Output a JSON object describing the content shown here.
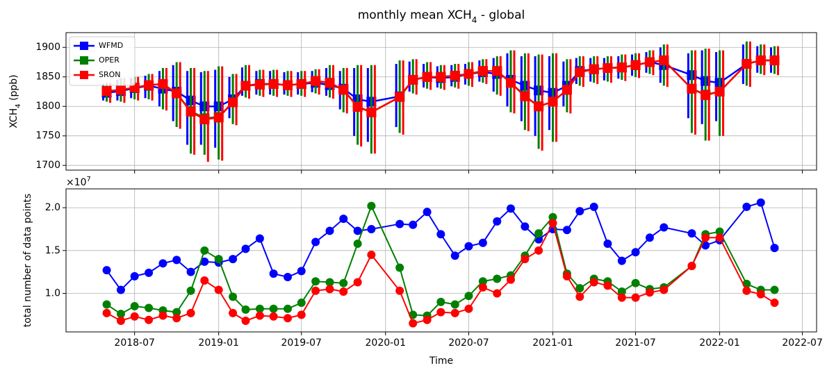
{
  "chart_data": [
    {
      "type": "errorbar",
      "title": [
        "monthly mean XCH",
        "4",
        " - global"
      ],
      "ylabel": [
        "XCH",
        "4",
        " (ppb)"
      ],
      "x": [
        "2018-05",
        "2018-06",
        "2018-07",
        "2018-08",
        "2018-09",
        "2018-10",
        "2018-11",
        "2018-12",
        "2019-01",
        "2019-02",
        "2019-03",
        "2019-04",
        "2019-05",
        "2019-06",
        "2019-07",
        "2019-08",
        "2019-09",
        "2019-10",
        "2019-11",
        "2019-12",
        "2020-02",
        "2020-03",
        "2020-04",
        "2020-05",
        "2020-06",
        "2020-07",
        "2020-08",
        "2020-09",
        "2020-10",
        "2020-11",
        "2020-12",
        "2021-01",
        "2021-02",
        "2021-03",
        "2021-04",
        "2021-05",
        "2021-06",
        "2021-07",
        "2021-08",
        "2021-09",
        "2021-11",
        "2021-12",
        "2022-01",
        "2022-03",
        "2022-04",
        "2022-05"
      ],
      "xlim": [
        "2018-02",
        "2022-08"
      ],
      "ylim": [
        1692,
        1925
      ],
      "yticks": [
        1700,
        1750,
        1800,
        1850,
        1900
      ],
      "grid": true,
      "legend": "upper left",
      "series": [
        {
          "name": "WFMD",
          "color": "#0000ff",
          "values": [
            1823,
            1826,
            1831,
            1835,
            1830,
            1825,
            1810,
            1800,
            1800,
            1812,
            1835,
            1838,
            1838,
            1836,
            1838,
            1840,
            1836,
            1830,
            1812,
            1808,
            1817,
            1845,
            1850,
            1848,
            1850,
            1855,
            1858,
            1855,
            1845,
            1835,
            1827,
            1823,
            1835,
            1860,
            1863,
            1865,
            1866,
            1870,
            1875,
            1870,
            1853,
            1843,
            1840,
            1872,
            1878,
            1878
          ],
          "low": [
            1810,
            1810,
            1814,
            1814,
            1800,
            1775,
            1735,
            1735,
            1730,
            1780,
            1818,
            1820,
            1820,
            1820,
            1820,
            1824,
            1818,
            1795,
            1750,
            1740,
            1765,
            1825,
            1832,
            1832,
            1834,
            1837,
            1842,
            1825,
            1800,
            1775,
            1750,
            1760,
            1800,
            1838,
            1842,
            1844,
            1847,
            1852,
            1857,
            1840,
            1780,
            1770,
            1775,
            1838,
            1857,
            1857
          ],
          "high": [
            1838,
            1845,
            1848,
            1852,
            1860,
            1870,
            1860,
            1858,
            1862,
            1850,
            1866,
            1860,
            1860,
            1858,
            1858,
            1860,
            1865,
            1860,
            1865,
            1865,
            1872,
            1876,
            1872,
            1868,
            1870,
            1872,
            1878,
            1882,
            1890,
            1885,
            1885,
            1885,
            1876,
            1882,
            1882,
            1882,
            1885,
            1888,
            1892,
            1900,
            1890,
            1895,
            1892,
            1905,
            1902,
            1900
          ]
        },
        {
          "name": "OPER",
          "color": "#008000",
          "values": [
            1826,
            1828,
            1832,
            1836,
            1838,
            1822,
            1792,
            1780,
            1782,
            1807,
            1835,
            1837,
            1838,
            1836,
            1838,
            1843,
            1840,
            1828,
            1800,
            1790,
            1816,
            1845,
            1850,
            1850,
            1852,
            1855,
            1860,
            1860,
            1840,
            1818,
            1800,
            1808,
            1828,
            1858,
            1863,
            1865,
            1866,
            1870,
            1875,
            1878,
            1830,
            1820,
            1825,
            1872,
            1878,
            1878
          ],
          "low": [
            1808,
            1808,
            1812,
            1812,
            1795,
            1765,
            1720,
            1718,
            1710,
            1770,
            1815,
            1818,
            1818,
            1818,
            1818,
            1822,
            1815,
            1790,
            1735,
            1720,
            1755,
            1822,
            1830,
            1830,
            1832,
            1835,
            1840,
            1820,
            1790,
            1760,
            1728,
            1740,
            1790,
            1835,
            1840,
            1842,
            1845,
            1850,
            1855,
            1835,
            1755,
            1742,
            1750,
            1835,
            1855,
            1855
          ],
          "high": [
            1840,
            1848,
            1850,
            1855,
            1865,
            1875,
            1865,
            1860,
            1868,
            1855,
            1870,
            1862,
            1862,
            1860,
            1860,
            1863,
            1870,
            1865,
            1870,
            1870,
            1878,
            1880,
            1875,
            1870,
            1872,
            1875,
            1880,
            1885,
            1895,
            1890,
            1888,
            1890,
            1880,
            1885,
            1885,
            1885,
            1888,
            1890,
            1895,
            1905,
            1895,
            1898,
            1895,
            1910,
            1905,
            1902
          ]
        },
        {
          "name": "SRON",
          "color": "#ff0000",
          "values": [
            1826,
            1828,
            1832,
            1836,
            1838,
            1822,
            1791,
            1778,
            1781,
            1807,
            1835,
            1837,
            1838,
            1836,
            1838,
            1843,
            1840,
            1828,
            1799,
            1790,
            1816,
            1845,
            1850,
            1850,
            1852,
            1855,
            1860,
            1860,
            1840,
            1817,
            1800,
            1808,
            1828,
            1858,
            1863,
            1865,
            1866,
            1870,
            1875,
            1878,
            1830,
            1819,
            1825,
            1872,
            1878,
            1878
          ],
          "low": [
            1806,
            1806,
            1810,
            1810,
            1793,
            1762,
            1718,
            1706,
            1708,
            1768,
            1813,
            1816,
            1816,
            1816,
            1816,
            1820,
            1813,
            1788,
            1732,
            1720,
            1752,
            1820,
            1828,
            1828,
            1830,
            1833,
            1838,
            1818,
            1788,
            1758,
            1725,
            1740,
            1788,
            1833,
            1838,
            1840,
            1843,
            1848,
            1853,
            1833,
            1752,
            1742,
            1750,
            1833,
            1853,
            1853
          ],
          "high": [
            1840,
            1848,
            1850,
            1855,
            1865,
            1875,
            1865,
            1860,
            1868,
            1855,
            1870,
            1862,
            1862,
            1860,
            1860,
            1863,
            1870,
            1865,
            1870,
            1870,
            1878,
            1880,
            1875,
            1870,
            1872,
            1875,
            1880,
            1885,
            1895,
            1890,
            1888,
            1890,
            1880,
            1885,
            1885,
            1885,
            1888,
            1890,
            1895,
            1905,
            1895,
            1898,
            1895,
            1910,
            1905,
            1902
          ]
        }
      ]
    },
    {
      "type": "line",
      "ylabel": "total number of data points",
      "y_offset": [
        "×10",
        "7"
      ],
      "xlabel": "Time",
      "x": [
        "2018-05",
        "2018-06",
        "2018-07",
        "2018-08",
        "2018-09",
        "2018-10",
        "2018-11",
        "2018-12",
        "2019-01",
        "2019-02",
        "2019-03",
        "2019-04",
        "2019-05",
        "2019-06",
        "2019-07",
        "2019-08",
        "2019-09",
        "2019-10",
        "2019-11",
        "2019-12",
        "2020-02",
        "2020-03",
        "2020-04",
        "2020-05",
        "2020-06",
        "2020-07",
        "2020-08",
        "2020-09",
        "2020-10",
        "2020-11",
        "2020-12",
        "2021-01",
        "2021-02",
        "2021-03",
        "2021-04",
        "2021-05",
        "2021-06",
        "2021-07",
        "2021-08",
        "2021-09",
        "2021-11",
        "2021-12",
        "2022-01",
        "2022-03",
        "2022-04",
        "2022-05"
      ],
      "xlim": [
        "2018-02",
        "2022-08"
      ],
      "xticks": [
        "2018-07",
        "2019-01",
        "2019-07",
        "2020-01",
        "2020-07",
        "2021-01",
        "2021-07",
        "2022-01",
        "2022-07"
      ],
      "ylim": [
        0.55,
        2.22
      ],
      "yticks": [
        {
          "value": 1,
          "label": "1.0"
        },
        1.5,
        {
          "value": 2,
          "label": "2.0"
        }
      ],
      "grid": true,
      "series": [
        {
          "name": "WFMD",
          "color": "#0000ff",
          "values": [
            1.27,
            1.04,
            1.2,
            1.24,
            1.35,
            1.39,
            1.25,
            1.37,
            1.36,
            1.4,
            1.52,
            1.64,
            1.23,
            1.19,
            1.26,
            1.6,
            1.73,
            1.87,
            1.73,
            1.75,
            1.81,
            1.8,
            1.95,
            1.69,
            1.44,
            1.55,
            1.59,
            1.84,
            1.99,
            1.78,
            1.63,
            1.75,
            1.74,
            1.96,
            2.01,
            1.58,
            1.38,
            1.48,
            1.65,
            1.77,
            1.7,
            1.56,
            1.62,
            2.01,
            2.06,
            1.53
          ]
        },
        {
          "name": "OPER",
          "color": "#008000",
          "values": [
            0.87,
            0.76,
            0.85,
            0.83,
            0.8,
            0.78,
            1.03,
            1.5,
            1.4,
            0.96,
            0.81,
            0.82,
            0.82,
            0.82,
            0.89,
            1.14,
            1.13,
            1.12,
            1.58,
            2.02,
            1.3,
            0.75,
            0.74,
            0.9,
            0.87,
            0.97,
            1.14,
            1.17,
            1.21,
            1.44,
            1.7,
            1.89,
            1.23,
            1.06,
            1.17,
            1.14,
            1.02,
            1.12,
            1.05,
            1.07,
            1.32,
            1.69,
            1.72,
            1.11,
            1.04,
            1.04
          ]
        },
        {
          "name": "SRON",
          "color": "#ff0000",
          "values": [
            0.77,
            0.68,
            0.73,
            0.69,
            0.74,
            0.71,
            0.77,
            1.15,
            1.04,
            0.77,
            0.68,
            0.74,
            0.73,
            0.71,
            0.75,
            1.03,
            1.05,
            1.02,
            1.13,
            1.45,
            1.03,
            0.65,
            0.69,
            0.78,
            0.77,
            0.82,
            1.07,
            1.0,
            1.16,
            1.4,
            1.5,
            1.82,
            1.2,
            0.96,
            1.13,
            1.09,
            0.95,
            0.95,
            1.01,
            1.04,
            1.32,
            1.65,
            1.65,
            1.03,
            0.99,
            0.89
          ]
        }
      ]
    }
  ]
}
